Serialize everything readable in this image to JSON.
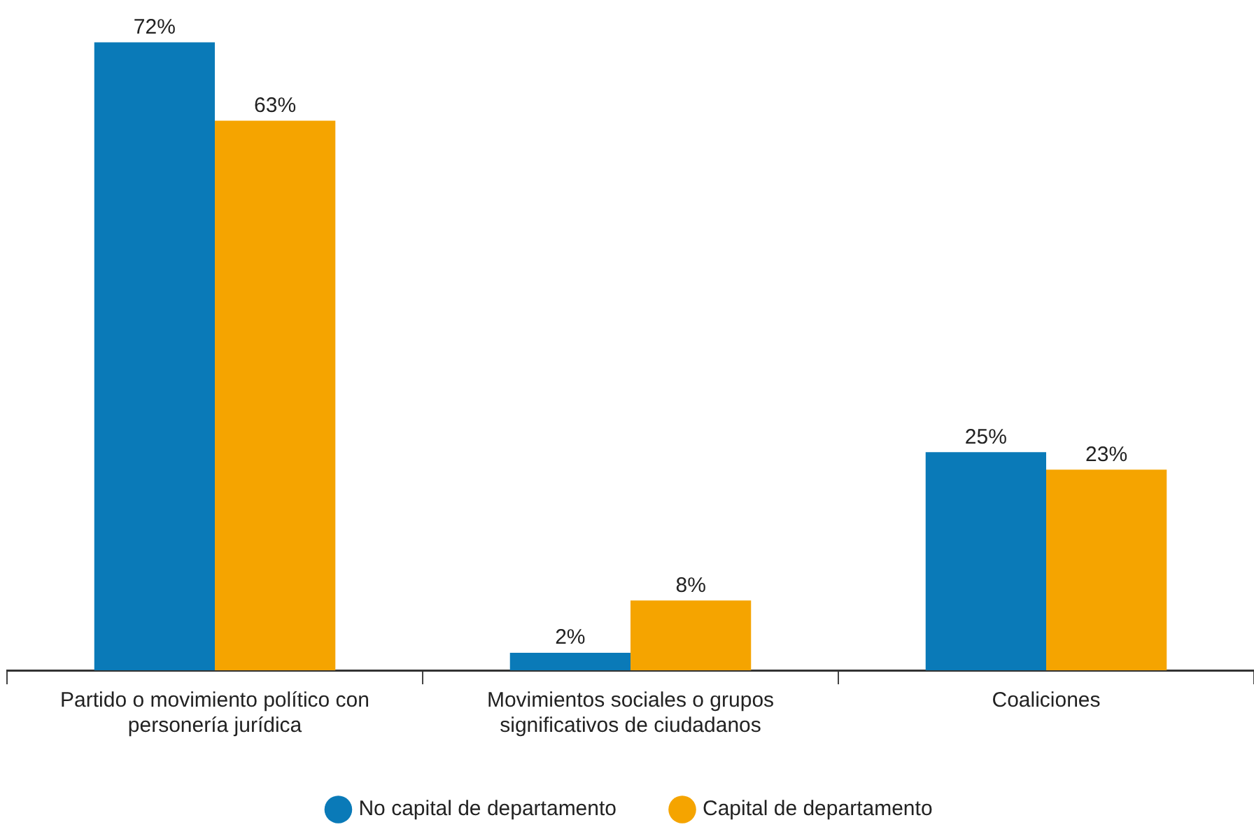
{
  "chart_data": {
    "type": "bar",
    "categories": [
      "Partido o movimiento político con personería jurídica",
      "Movimientos sociales o grupos significativos de ciudadanos",
      "Coaliciones"
    ],
    "series": [
      {
        "name": "No capital de departamento",
        "color": "#0a7ab8",
        "values": [
          72,
          2,
          25
        ],
        "value_labels": [
          "72%",
          "2%",
          "25%"
        ]
      },
      {
        "name": "Capital de departamento",
        "color": "#f5a400",
        "values": [
          63,
          8,
          23
        ],
        "value_labels": [
          "63%",
          "8%",
          "23%"
        ]
      }
    ],
    "legend": "bottom",
    "grid": false
  }
}
